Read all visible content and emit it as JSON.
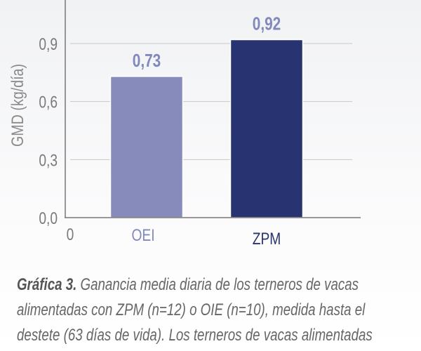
{
  "chart_data": {
    "type": "bar",
    "categories": [
      "OEI",
      "ZPM"
    ],
    "values": [
      0.73,
      0.92
    ],
    "data_labels": [
      "0,73",
      "0,92"
    ],
    "colors": [
      "#868bbb",
      "#283371"
    ],
    "label_colors": [
      "#8188bb",
      "#8188bb"
    ],
    "category_label_colors": [
      "#8188bb",
      "#283371"
    ],
    "ylabel": "GMD (kg/día)",
    "xlabel": "",
    "x_origin_label": "0",
    "yticks": [
      0.0,
      0.3,
      0.6,
      0.9
    ],
    "ytick_labels": [
      "0,0",
      "0,3",
      "0,6",
      "0,9"
    ],
    "ylim": [
      0,
      1.12
    ],
    "grid": true
  },
  "caption": {
    "label": "Gráfica 3.",
    "lines": [
      " Ganancia media diaria de los terneros de vacas",
      "alimentadas con ZPM (n=12) o OIE (n=10), medida hasta el",
      "destete (63 días de vida). Los terneros de vacas alimentadas"
    ]
  }
}
